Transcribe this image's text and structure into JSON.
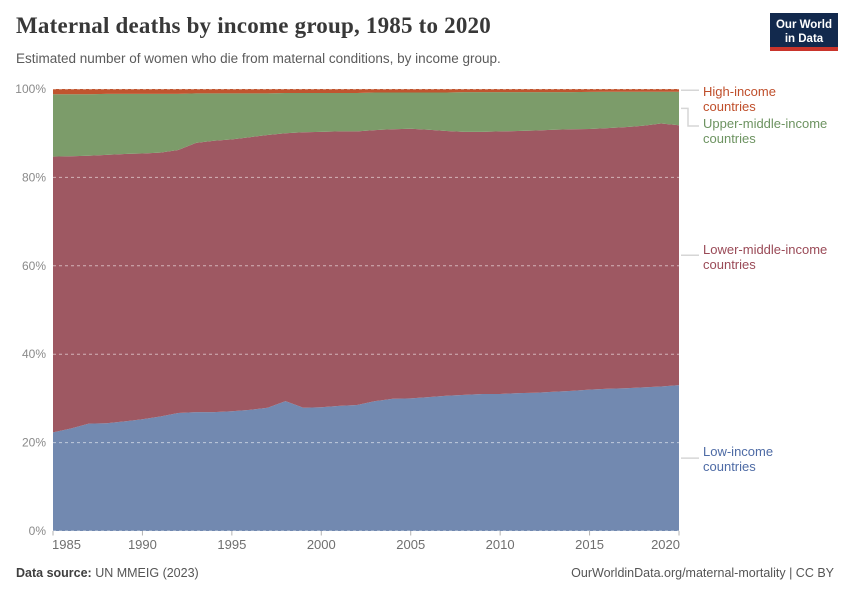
{
  "header": {
    "title": "Maternal deaths by income group, 1985 to 2020",
    "subtitle": "Estimated number of women who die from maternal conditions, by income group."
  },
  "logo": {
    "line1": "Our World",
    "line2": "in Data",
    "bg": "#12294d",
    "accent": "#c9342b"
  },
  "chart_data": {
    "type": "area",
    "stacking": "percent",
    "title": "Maternal deaths by income group, 1985 to 2020",
    "xlabel": "",
    "ylabel": "",
    "ylim": [
      0,
      100
    ],
    "grid": "dashed-horizontal",
    "legend_position": "right",
    "x": [
      1985,
      1986,
      1987,
      1988,
      1989,
      1990,
      1991,
      1992,
      1993,
      1994,
      1995,
      1996,
      1997,
      1998,
      1999,
      2000,
      2001,
      2002,
      2003,
      2004,
      2005,
      2006,
      2007,
      2008,
      2009,
      2010,
      2011,
      2012,
      2013,
      2014,
      2015,
      2016,
      2017,
      2018,
      2019,
      2020
    ],
    "xticks": [
      1985,
      1990,
      1995,
      2000,
      2005,
      2010,
      2015,
      2020
    ],
    "yticks": [
      {
        "value": 0,
        "label": "0%"
      },
      {
        "value": 20,
        "label": "20%"
      },
      {
        "value": 40,
        "label": "40%"
      },
      {
        "value": 60,
        "label": "60%"
      },
      {
        "value": 80,
        "label": "80%"
      },
      {
        "value": 100,
        "label": "100%"
      }
    ],
    "series": [
      {
        "name": "Low-income countries",
        "color": "#7289b0",
        "label_color": "#4e6ba5",
        "values": [
          22.3,
          23.2,
          24.3,
          24.4,
          24.8,
          25.3,
          25.9,
          26.7,
          26.9,
          26.9,
          27.1,
          27.4,
          27.9,
          29.4,
          27.9,
          28.0,
          28.3,
          28.5,
          29.4,
          29.9,
          30.0,
          30.3,
          30.6,
          30.8,
          31.0,
          31.0,
          31.2,
          31.3,
          31.5,
          31.7,
          32.0,
          32.2,
          32.3,
          32.5,
          32.7,
          33.0
        ]
      },
      {
        "name": "Lower-middle-income countries",
        "color": "#9e5862",
        "label_color": "#9a4a57",
        "values": [
          62.4,
          61.6,
          60.6,
          60.7,
          60.5,
          60.1,
          59.7,
          59.5,
          60.9,
          61.4,
          61.5,
          61.7,
          61.7,
          60.6,
          62.3,
          62.3,
          62.1,
          61.9,
          61.3,
          61.0,
          61.0,
          60.5,
          59.9,
          59.5,
          59.3,
          59.4,
          59.3,
          59.3,
          59.3,
          59.2,
          59.0,
          59.0,
          59.1,
          59.2,
          59.5,
          58.8
        ]
      },
      {
        "name": "Upper-middle-income countries",
        "color": "#7c9c6a",
        "label_color": "#6d9361",
        "values": [
          14.1,
          14.0,
          13.9,
          13.8,
          13.6,
          13.5,
          13.3,
          12.7,
          11.2,
          10.7,
          10.4,
          9.9,
          9.4,
          9.1,
          8.9,
          8.8,
          8.7,
          8.7,
          8.5,
          8.3,
          8.2,
          8.4,
          8.7,
          9.0,
          9.0,
          8.9,
          8.8,
          8.7,
          8.5,
          8.4,
          8.4,
          8.2,
          8.0,
          7.7,
          7.2,
          7.6
        ]
      },
      {
        "name": "High-income countries",
        "color": "#c0552f",
        "label_color": "#bf4e2a",
        "values": [
          1.2,
          1.2,
          1.2,
          1.1,
          1.1,
          1.1,
          1.1,
          1.1,
          1.0,
          1.0,
          1.0,
          1.0,
          1.0,
          0.9,
          0.9,
          0.9,
          0.9,
          0.9,
          0.8,
          0.8,
          0.8,
          0.8,
          0.8,
          0.7,
          0.7,
          0.7,
          0.7,
          0.7,
          0.7,
          0.7,
          0.65,
          0.64,
          0.63,
          0.62,
          0.61,
          0.6
        ]
      }
    ]
  },
  "footer": {
    "source_label": "Data source:",
    "source_value": " UN MMEIG (2023)",
    "link": "OurWorldinData.org/maternal-mortality",
    "license": " | CC BY"
  }
}
